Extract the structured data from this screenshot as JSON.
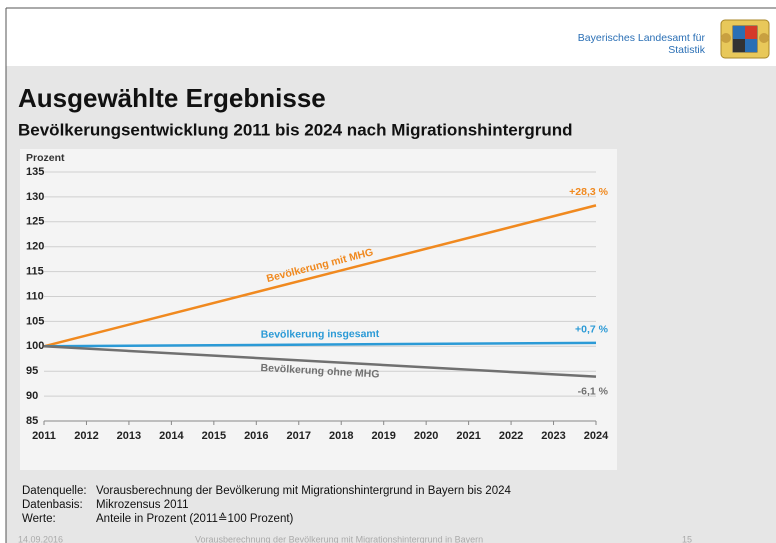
{
  "header": {
    "org_line1": "Bayerisches Landesamt für",
    "org_line2": "Statistik"
  },
  "title": "Ausgewählte Ergebnisse",
  "subtitle": "Bevölkerungsentwicklung 2011 bis 2024 nach Migrationshintergrund",
  "chart_data": {
    "type": "line",
    "y_label": "Prozent",
    "x": [
      2011,
      2024
    ],
    "xlim": [
      2011,
      2024
    ],
    "xticks": [
      2011,
      2012,
      2013,
      2014,
      2015,
      2016,
      2017,
      2018,
      2019,
      2020,
      2021,
      2022,
      2023,
      2024
    ],
    "ylim": [
      85,
      135
    ],
    "yticks": [
      85,
      90,
      95,
      100,
      105,
      110,
      115,
      120,
      125,
      130,
      135
    ],
    "grid": true,
    "series": [
      {
        "name": "Bevölkerung mit MHG",
        "color": "#f0891f",
        "values": [
          100,
          128.3
        ],
        "end_label": "+28,3 %"
      },
      {
        "name": "Bevölkerung insgesamt",
        "color": "#2b9ad6",
        "values": [
          100,
          100.7
        ],
        "end_label": "+0,7 %"
      },
      {
        "name": "Bevölkerung ohne MHG",
        "color": "#707070",
        "values": [
          100,
          93.9
        ],
        "end_label": "-6,1 %"
      }
    ]
  },
  "notes": [
    {
      "label": "Datenquelle:",
      "text": "Vorausberechnung der Bevölkerung mit Migrationshintergrund in Bayern bis 2024"
    },
    {
      "label": "Datenbasis:",
      "text": "Mikrozensus 2011"
    },
    {
      "label": "Werte:",
      "text": "Anteile in Prozent (2011≙100 Prozent)"
    }
  ],
  "footer": {
    "date": "14.09.2016",
    "text": "Vorausberechnung der Bevölkerung mit Migrationshintergrund in Bayern",
    "page": "15"
  }
}
